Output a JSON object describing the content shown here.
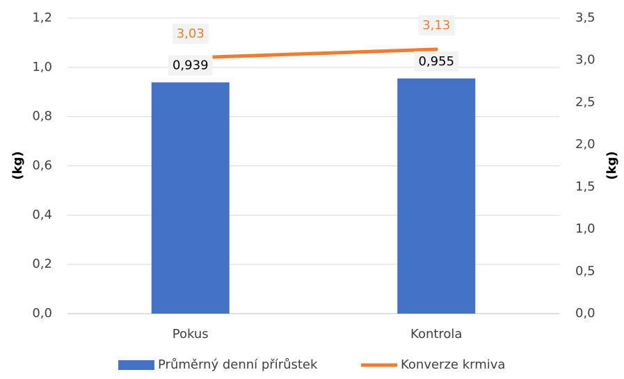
{
  "chart_data": {
    "type": "bar",
    "categories": [
      "Pokus",
      "Kontrola"
    ],
    "series": [
      {
        "name": "Průměrný denní přírůstek",
        "type": "bar",
        "color": "#4472c4",
        "values": [
          0.939,
          0.955
        ],
        "value_labels": [
          "0,939",
          "0,955"
        ]
      },
      {
        "name": "Konverze krmiva",
        "type": "line",
        "axis": "y2",
        "color": "#ed7d31",
        "values": [
          3.03,
          3.13
        ],
        "value_labels": [
          "3,03",
          "3,13"
        ]
      }
    ],
    "ylabel": "(kg)",
    "y2label": "(kg)",
    "ylim": [
      0,
      1.2
    ],
    "yticks": [
      {
        "value": 0,
        "label": "0,0"
      },
      {
        "value": 0.2,
        "label": "0,2"
      },
      {
        "value": 0.4,
        "label": "0,4"
      },
      {
        "value": 0.6,
        "label": "0,6"
      },
      {
        "value": 0.8,
        "label": "0,8"
      },
      {
        "value": 1.0,
        "label": "1,0"
      },
      {
        "value": 1.2,
        "label": "1,2"
      }
    ],
    "y2lim": [
      0,
      3.5
    ],
    "y2ticks": [
      {
        "value": 0,
        "label": "0,0"
      },
      {
        "value": 0.5,
        "label": "0,5"
      },
      {
        "value": 1.0,
        "label": "1,0"
      },
      {
        "value": 1.5,
        "label": "1,5"
      },
      {
        "value": 2.0,
        "label": "2,0"
      },
      {
        "value": 2.5,
        "label": "2,5"
      },
      {
        "value": 3.0,
        "label": "3,0"
      },
      {
        "value": 3.5,
        "label": "3,5"
      }
    ],
    "grid": true,
    "legend": "bottom"
  }
}
